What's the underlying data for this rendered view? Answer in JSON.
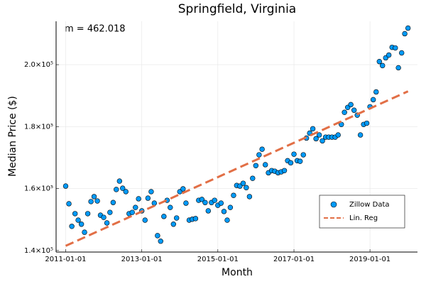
{
  "chart_data": {
    "type": "scatter",
    "title": "Springfield, Virginia",
    "x_label": "Month",
    "y_label": "Median Price ($)",
    "annotation": "m = 462.018",
    "xlim": [
      "2010-10-01",
      "2020-04-01"
    ],
    "xticks": [
      "2011-01-01",
      "2013-01-01",
      "2015-01-01",
      "2017-01-01",
      "2019-01-01"
    ],
    "ylim": [
      139500,
      214000
    ],
    "yticks": [
      {
        "value": 140000,
        "label": "1.4×10⁵"
      },
      {
        "value": 160000,
        "label": "1.6×10⁵"
      },
      {
        "value": 180000,
        "label": "1.8×10⁵"
      },
      {
        "value": 200000,
        "label": "2.0×10⁵"
      }
    ],
    "grid": true,
    "legend": "bottom right",
    "series": [
      {
        "name": "Zillow Data",
        "type": "scatter",
        "color": "#009af9",
        "x": [
          "2011-01-01",
          "2011-02-01",
          "2011-03-01",
          "2011-04-01",
          "2011-05-01",
          "2011-06-01",
          "2011-07-01",
          "2011-08-01",
          "2011-09-01",
          "2011-10-01",
          "2011-11-01",
          "2011-12-01",
          "2012-01-01",
          "2012-02-01",
          "2012-03-01",
          "2012-04-01",
          "2012-05-01",
          "2012-06-01",
          "2012-07-01",
          "2012-08-01",
          "2012-09-01",
          "2012-10-01",
          "2012-11-01",
          "2012-12-01",
          "2013-01-01",
          "2013-02-01",
          "2013-03-01",
          "2013-04-01",
          "2013-05-01",
          "2013-06-01",
          "2013-07-01",
          "2013-08-01",
          "2013-09-01",
          "2013-10-01",
          "2013-11-01",
          "2013-12-01",
          "2014-01-01",
          "2014-02-01",
          "2014-03-01",
          "2014-04-01",
          "2014-05-01",
          "2014-06-01",
          "2014-07-01",
          "2014-08-01",
          "2014-09-01",
          "2014-10-01",
          "2014-11-01",
          "2014-12-01",
          "2015-01-01",
          "2015-02-01",
          "2015-03-01",
          "2015-04-01",
          "2015-05-01",
          "2015-06-01",
          "2015-07-01",
          "2015-08-01",
          "2015-09-01",
          "2015-10-01",
          "2015-11-01",
          "2015-12-01",
          "2016-01-01",
          "2016-02-01",
          "2016-03-01",
          "2016-04-01",
          "2016-05-01",
          "2016-06-01",
          "2016-07-01",
          "2016-08-01",
          "2016-09-01",
          "2016-10-01",
          "2016-11-01",
          "2016-12-01",
          "2017-01-01",
          "2017-02-01",
          "2017-03-01",
          "2017-04-01",
          "2017-05-01",
          "2017-06-01",
          "2017-07-01",
          "2017-08-01",
          "2017-09-01",
          "2017-10-01",
          "2017-11-01",
          "2017-12-01",
          "2018-01-01",
          "2018-02-01",
          "2018-03-01",
          "2018-04-01",
          "2018-05-01",
          "2018-06-01",
          "2018-07-01",
          "2018-08-01",
          "2018-09-01",
          "2018-10-01",
          "2018-11-01",
          "2018-12-01",
          "2019-01-01",
          "2019-02-01",
          "2019-03-01",
          "2019-04-01",
          "2019-05-01",
          "2019-06-01",
          "2019-07-01",
          "2019-08-01",
          "2019-09-01",
          "2019-10-01",
          "2019-11-01",
          "2019-12-01",
          "2020-01-01"
        ],
        "values": [
          160800,
          155100,
          147800,
          151900,
          149800,
          148500,
          145900,
          151900,
          155800,
          157400,
          156000,
          151400,
          150700,
          148900,
          152300,
          155500,
          159700,
          162400,
          160100,
          159000,
          151900,
          152300,
          153900,
          156700,
          152800,
          149800,
          156900,
          159000,
          155300,
          144800,
          143000,
          151000,
          156200,
          153900,
          148500,
          150500,
          159000,
          159900,
          155300,
          149800,
          150100,
          150300,
          156200,
          156500,
          155500,
          152800,
          155500,
          156200,
          154600,
          155300,
          152600,
          149800,
          153900,
          157800,
          161000,
          160800,
          161700,
          160300,
          157400,
          163300,
          167400,
          170900,
          172700,
          167700,
          165100,
          165800,
          165600,
          165100,
          165400,
          165800,
          169000,
          168300,
          171100,
          169000,
          168800,
          170900,
          176300,
          177900,
          179300,
          176100,
          177300,
          175400,
          176600,
          176600,
          176600,
          176600,
          177300,
          180700,
          184600,
          186200,
          187100,
          185300,
          183700,
          177300,
          180700,
          181100,
          186400,
          188700,
          191200,
          201000,
          199700,
          202200,
          203100,
          205600,
          205400,
          199000,
          203800,
          210000,
          211800
        ]
      },
      {
        "name": "Lin. Reg",
        "type": "line",
        "color": "#e26f46",
        "x": [
          "2011-01-01",
          "2020-01-01"
        ],
        "values": [
          141500,
          191400
        ]
      }
    ]
  }
}
